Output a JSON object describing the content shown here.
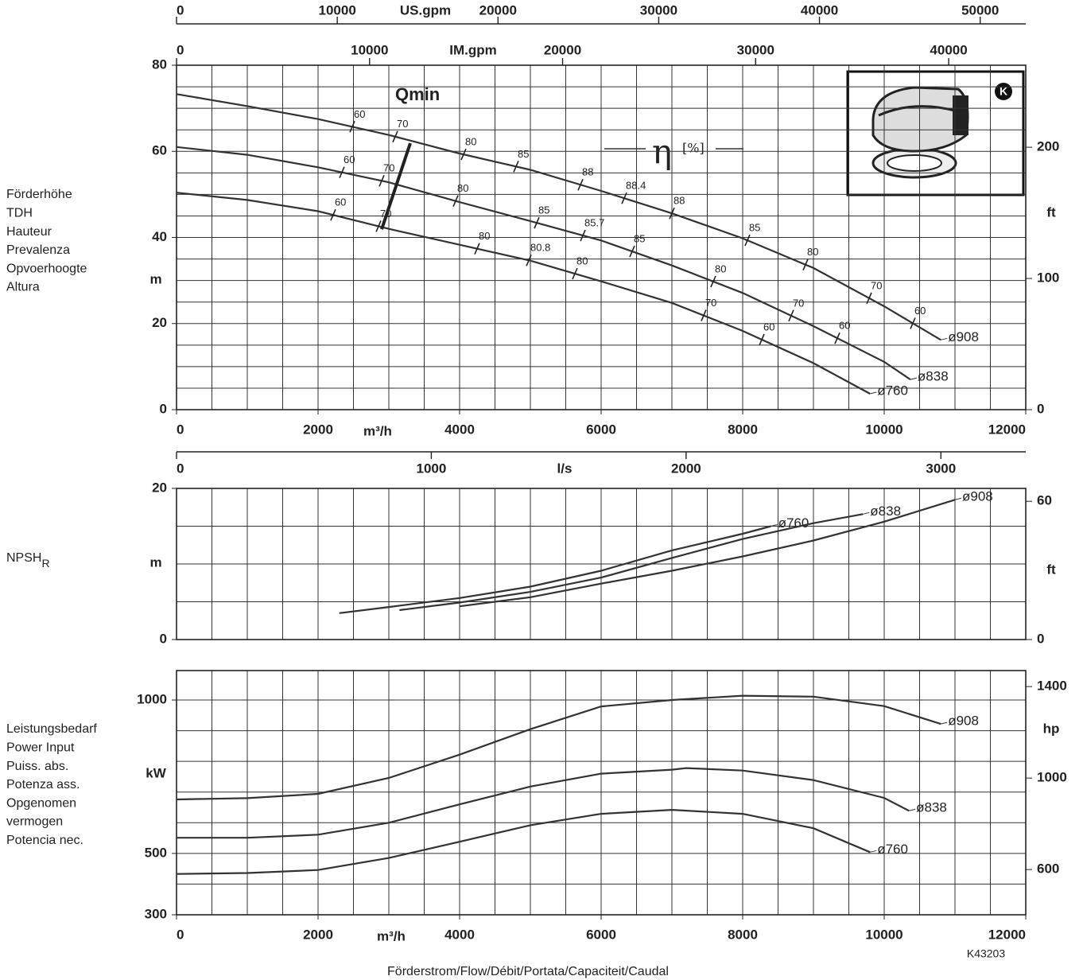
{
  "chart_data": [
    {
      "type": "line",
      "ylabel_lines": [
        "Förderhöhe",
        "TDH",
        "Hauteur",
        "Prevalenza",
        "Opvoerhoogte",
        "Altura"
      ],
      "ylabel": "m",
      "xlabel": "m³/h",
      "xlim": [
        0,
        12000
      ],
      "xticks": [
        0,
        2000,
        4000,
        6000,
        8000,
        10000,
        12000
      ],
      "xgrid": [
        0,
        500,
        1000,
        1500,
        2000,
        2500,
        3000,
        3500,
        4000,
        4500,
        5000,
        5500,
        6000,
        6500,
        7000,
        7500,
        8000,
        8500,
        9000,
        9500,
        10000,
        10500,
        11000,
        11500,
        12000
      ],
      "ylim": [
        0,
        80
      ],
      "yticks": [
        0,
        20,
        40,
        60,
        80
      ],
      "ygrid": [
        0,
        5,
        10,
        15,
        20,
        25,
        30,
        35,
        40,
        45,
        50,
        55,
        60,
        65,
        70,
        75,
        80
      ],
      "y2axis": {
        "label": "ft",
        "lim": [
          0,
          262.5
        ],
        "ticks": [
          0,
          100,
          200
        ]
      },
      "x2axes": [
        {
          "label": "US.gpm",
          "lim": [
            0,
            52834
          ],
          "ticks": [
            0,
            10000,
            20000,
            30000,
            40000,
            50000
          ]
        },
        {
          "label": "IM.gpm",
          "lim": [
            0,
            43993
          ],
          "ticks": [
            0,
            10000,
            20000,
            30000,
            40000
          ]
        }
      ],
      "series": [
        {
          "name": "ø908",
          "color": "#333",
          "x": [
            0,
            1000,
            2000,
            3000,
            4000,
            5000,
            6000,
            7000,
            8000,
            9000,
            10000,
            10800
          ],
          "values": [
            73.3,
            70.5,
            67.5,
            63.8,
            59.5,
            55.7,
            50.8,
            45.6,
            39.8,
            32.9,
            24.0,
            16.2
          ]
        },
        {
          "name": "ø838",
          "color": "#333",
          "x": [
            0,
            1000,
            2000,
            3000,
            4000,
            5000,
            6000,
            7000,
            8000,
            9000,
            10000,
            10370
          ],
          "values": [
            61,
            59.2,
            56.3,
            52.8,
            48.2,
            43.8,
            39.3,
            33.5,
            27.1,
            19.4,
            11.1,
            7.0
          ]
        },
        {
          "name": "ø760",
          "color": "#333",
          "x": [
            0,
            1000,
            2000,
            3000,
            4000,
            5000,
            6000,
            7000,
            8000,
            9000,
            9800
          ],
          "values": [
            50.4,
            48.7,
            46.1,
            42.0,
            38.3,
            34.6,
            29.8,
            24.8,
            18.3,
            10.8,
            3.7
          ]
        }
      ],
      "efficiency": [
        [
          {
            "x": 2483,
            "eta": 60
          },
          {
            "x": 3090,
            "eta": 70
          },
          {
            "x": 4056,
            "eta": 80
          },
          {
            "x": 4798,
            "eta": 85
          },
          {
            "x": 5708,
            "eta": 88
          },
          {
            "x": 6326,
            "eta": 88.4
          },
          {
            "x": 7000,
            "eta": 88
          },
          {
            "x": 8067,
            "eta": 85
          },
          {
            "x": 8888,
            "eta": 80
          },
          {
            "x": 9787,
            "eta": 70
          },
          {
            "x": 10404,
            "eta": 60
          }
        ],
        [
          {
            "x": 2337,
            "eta": 60
          },
          {
            "x": 2899,
            "eta": 70
          },
          {
            "x": 3944,
            "eta": 80
          },
          {
            "x": 5090,
            "eta": 85
          },
          {
            "x": 5742,
            "eta": 85.7
          },
          {
            "x": 6438,
            "eta": 85
          },
          {
            "x": 7584,
            "eta": 80
          },
          {
            "x": 8685,
            "eta": 70
          },
          {
            "x": 9337,
            "eta": 60
          }
        ],
        [
          {
            "x": 2213,
            "eta": 60
          },
          {
            "x": 2854,
            "eta": 70
          },
          {
            "x": 4247,
            "eta": 80
          },
          {
            "x": 4978,
            "eta": 80.8
          },
          {
            "x": 5629,
            "eta": 80
          },
          {
            "x": 7449,
            "eta": 70
          },
          {
            "x": 8270,
            "eta": 60
          }
        ]
      ],
      "eta_label": "η",
      "eta_unit": "[%]",
      "qmin": {
        "label": "Qmin",
        "x": [
          3303,
          2899
        ],
        "y": [
          61.9,
          41.9
        ]
      },
      "pump_badge": "K"
    },
    {
      "type": "line",
      "ylabel_lines": [
        "NPSH"
      ],
      "ylabel_sub": "R",
      "ylabel": "m",
      "xlim": [
        0,
        12000
      ],
      "xgrid": [
        0,
        500,
        1000,
        1500,
        2000,
        2500,
        3000,
        3500,
        4000,
        4500,
        5000,
        5500,
        6000,
        6500,
        7000,
        7500,
        8000,
        8500,
        9000,
        9500,
        10000,
        10500,
        11000,
        11500,
        12000
      ],
      "ylim": [
        0,
        20
      ],
      "yticks": [
        0,
        20
      ],
      "ygrid": [
        0,
        5,
        10,
        15,
        20
      ],
      "y2axis": {
        "label": "ft",
        "lim": [
          0,
          65.6
        ],
        "ticks": [
          0,
          60
        ]
      },
      "x2axes": [
        {
          "label": "l/s",
          "lim": [
            0,
            3333
          ],
          "ticks": [
            0,
            1000,
            2000,
            3000
          ]
        }
      ],
      "series": [
        {
          "name": "ø760",
          "color": "#333",
          "x": [
            2300,
            3000,
            4000,
            5000,
            6000,
            7000,
            8000,
            8400
          ],
          "values": [
            3.5,
            4.3,
            5.5,
            7.0,
            9.1,
            11.8,
            14.0,
            15.0
          ]
        },
        {
          "name": "ø838",
          "color": "#333",
          "x": [
            3150,
            4000,
            5000,
            6000,
            7000,
            8000,
            9000,
            9700
          ],
          "values": [
            3.9,
            4.9,
            6.3,
            8.2,
            10.8,
            13.3,
            15.4,
            16.6
          ]
        },
        {
          "name": "ø908",
          "color": "#333",
          "x": [
            4000,
            5000,
            6000,
            7000,
            8000,
            9000,
            10000,
            11000
          ],
          "values": [
            4.4,
            5.6,
            7.4,
            9.1,
            11.0,
            13.1,
            15.6,
            18.5
          ]
        }
      ]
    },
    {
      "type": "line",
      "ylabel_lines": [
        "Leistungsbedarf",
        "Power Input",
        "Puiss. abs.",
        "Potenza ass.",
        "Opgenomen",
        "vermogen",
        "Potencia nec."
      ],
      "ylabel": "kW",
      "xlabel": "m³/h",
      "xlim": [
        0,
        12000
      ],
      "xticks": [
        0,
        2000,
        4000,
        6000,
        8000,
        10000,
        12000
      ],
      "xgrid": [
        0,
        500,
        1000,
        1500,
        2000,
        2500,
        3000,
        3500,
        4000,
        4500,
        5000,
        5500,
        6000,
        6500,
        7000,
        7500,
        8000,
        8500,
        9000,
        9500,
        10000,
        10500,
        11000,
        11500,
        12000
      ],
      "ylim": [
        300,
        1096
      ],
      "yticks": [
        300,
        500,
        1000
      ],
      "ygrid": [
        300,
        400,
        500,
        600,
        700,
        800,
        900,
        1000
      ],
      "y2axis": {
        "label": "hp",
        "lim": [
          402.3,
          1470
        ],
        "ticks": [
          600,
          1000,
          1400
        ]
      },
      "series": [
        {
          "name": "ø908",
          "color": "#333",
          "x": [
            0,
            1000,
            2000,
            3000,
            4000,
            5000,
            6000,
            7000,
            8000,
            9000,
            10000,
            10800
          ],
          "values": [
            676,
            680,
            694,
            746,
            822,
            905,
            979,
            1000,
            1014,
            1011,
            980,
            922
          ]
        },
        {
          "name": "ø838",
          "color": "#333",
          "x": [
            0,
            1000,
            2000,
            3000,
            4000,
            5000,
            6000,
            7000,
            7200,
            8000,
            9000,
            10000,
            10350
          ],
          "values": [
            551,
            551,
            561,
            600,
            660,
            718,
            760,
            773,
            778,
            770,
            739,
            681,
            639
          ]
        },
        {
          "name": "ø760",
          "color": "#333",
          "x": [
            0,
            1000,
            2000,
            3000,
            4000,
            5000,
            6000,
            7000,
            8000,
            9000,
            9800
          ],
          "values": [
            433,
            436,
            446,
            485,
            538,
            592,
            629,
            642,
            629,
            582,
            504
          ]
        }
      ],
      "footer_label": "Förderstrom/Flow/Débit/Portata/Capaciteit/Caudal",
      "code": "K43203"
    }
  ]
}
